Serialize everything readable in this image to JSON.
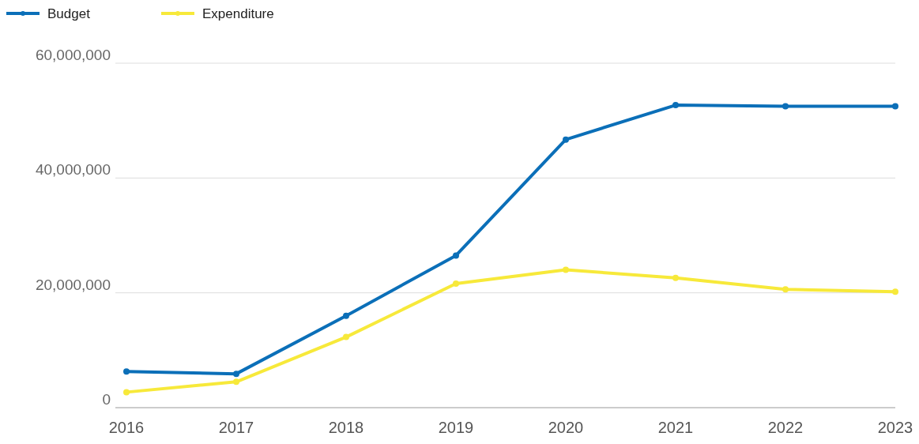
{
  "chart_data": {
    "type": "line",
    "categories": [
      "2016",
      "2017",
      "2018",
      "2019",
      "2020",
      "2021",
      "2022",
      "2023"
    ],
    "series": [
      {
        "name": "Budget",
        "color": "#0b6fb8",
        "values": [
          6300000,
          5900000,
          16000000,
          26500000,
          46700000,
          52700000,
          52500000,
          52500000
        ]
      },
      {
        "name": "Expenditure",
        "color": "#f7e93a",
        "values": [
          2700000,
          4500000,
          12300000,
          21600000,
          24000000,
          22600000,
          20600000,
          20200000
        ]
      }
    ],
    "ylim": [
      0,
      60000000
    ],
    "yticks": [
      {
        "value": 0,
        "label": "0"
      },
      {
        "value": 20000000,
        "label": "20,000,000"
      },
      {
        "value": 40000000,
        "label": "40,000,000"
      },
      {
        "value": 60000000,
        "label": "60,000,000"
      }
    ],
    "grid": "y",
    "legend": "top left",
    "marker": "circle",
    "line_style": "solid"
  }
}
